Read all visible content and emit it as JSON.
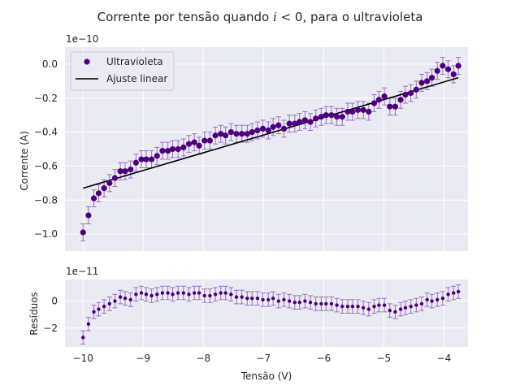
{
  "figure": {
    "title_prefix": "Corrente por tensão quando ",
    "title_math": "i",
    "title_suffix": " < 0, para o ultravioleta",
    "colors": {
      "background": "#eaeaf2",
      "grid": "#ffffff",
      "points": "#4b0082",
      "errorbars": "#9a6fc2",
      "fit": "#000000",
      "text": "#262626"
    }
  },
  "chart_data": [
    {
      "type": "scatter",
      "panel": "main",
      "title": "Corrente por tensão quando i < 0, para o ultravioleta",
      "xlabel": "",
      "ylabel": "Corrente (A)",
      "offset_label": "1e−10",
      "xlim": [
        -10.3,
        -3.6
      ],
      "ylim": [
        -1.1,
        0.1
      ],
      "xticks": [
        -10,
        -9,
        -8,
        -7,
        -6,
        -5,
        -4
      ],
      "xtick_labels": [
        "",
        "",
        "",
        "",
        "",
        "",
        ""
      ],
      "yticks": [
        -1.0,
        -0.8,
        -0.6,
        -0.4,
        -0.2,
        0.0
      ],
      "ytick_labels": [
        "−1.0",
        "−0.8",
        "−0.6",
        "−0.4",
        "−0.2",
        "0.0"
      ],
      "grid": true,
      "legend": {
        "placement": "top-left",
        "entries": [
          "Ultravioleta",
          "Ajuste linear"
        ]
      },
      "series": [
        {
          "name": "Ultravioleta",
          "kind": "errorbar-scatter",
          "yerr": 0.05,
          "x": [
            -10.0,
            -9.91,
            -9.82,
            -9.74,
            -9.65,
            -9.56,
            -9.47,
            -9.38,
            -9.3,
            -9.21,
            -9.12,
            -9.03,
            -8.95,
            -8.86,
            -8.77,
            -8.68,
            -8.59,
            -8.51,
            -8.42,
            -8.33,
            -8.24,
            -8.15,
            -8.07,
            -7.98,
            -7.89,
            -7.8,
            -7.71,
            -7.63,
            -7.54,
            -7.45,
            -7.36,
            -7.27,
            -7.19,
            -7.1,
            -7.01,
            -6.92,
            -6.84,
            -6.75,
            -6.66,
            -6.57,
            -6.48,
            -6.4,
            -6.31,
            -6.22,
            -6.13,
            -6.04,
            -5.96,
            -5.87,
            -5.78,
            -5.69,
            -5.6,
            -5.52,
            -5.43,
            -5.34,
            -5.25,
            -5.16,
            -5.08,
            -4.99,
            -4.9,
            -4.81,
            -4.72,
            -4.64,
            -4.55,
            -4.46,
            -4.37,
            -4.28,
            -4.2,
            -4.11,
            -4.02,
            -3.93,
            -3.84,
            -3.76
          ],
          "y": [
            -0.99,
            -0.89,
            -0.79,
            -0.76,
            -0.73,
            -0.7,
            -0.67,
            -0.63,
            -0.63,
            -0.62,
            -0.58,
            -0.56,
            -0.56,
            -0.56,
            -0.54,
            -0.51,
            -0.51,
            -0.5,
            -0.5,
            -0.49,
            -0.47,
            -0.46,
            -0.48,
            -0.45,
            -0.45,
            -0.42,
            -0.41,
            -0.42,
            -0.4,
            -0.41,
            -0.41,
            -0.41,
            -0.4,
            -0.39,
            -0.38,
            -0.39,
            -0.37,
            -0.36,
            -0.38,
            -0.35,
            -0.35,
            -0.34,
            -0.33,
            -0.34,
            -0.32,
            -0.31,
            -0.3,
            -0.3,
            -0.31,
            -0.31,
            -0.28,
            -0.28,
            -0.27,
            -0.27,
            -0.28,
            -0.23,
            -0.21,
            -0.19,
            -0.25,
            -0.25,
            -0.21,
            -0.18,
            -0.17,
            -0.15,
            -0.11,
            -0.1,
            -0.08,
            -0.04,
            -0.01,
            -0.03,
            -0.06,
            -0.01
          ]
        },
        {
          "name": "Ajuste linear",
          "kind": "line",
          "x": [
            -10.0,
            -3.76
          ],
          "y": [
            -0.73,
            -0.08
          ]
        }
      ]
    },
    {
      "type": "scatter",
      "panel": "residuals",
      "xlabel": "Tensão (V)",
      "ylabel": "Resíduos",
      "offset_label": "1e−11",
      "xlim": [
        -10.3,
        -3.6
      ],
      "ylim": [
        -3.4,
        1.6
      ],
      "xticks": [
        -10,
        -9,
        -8,
        -7,
        -6,
        -5,
        -4
      ],
      "xtick_labels": [
        "−10",
        "−9",
        "−8",
        "−7",
        "−6",
        "−5",
        "−4"
      ],
      "yticks": [
        -2,
        0
      ],
      "ytick_labels": [
        "−2",
        "0"
      ],
      "grid": true,
      "series": [
        {
          "name": "Resíduos",
          "kind": "errorbar-scatter",
          "yerr": 0.5,
          "x": [
            -10.0,
            -9.91,
            -9.82,
            -9.74,
            -9.65,
            -9.56,
            -9.47,
            -9.38,
            -9.3,
            -9.21,
            -9.12,
            -9.03,
            -8.95,
            -8.86,
            -8.77,
            -8.68,
            -8.59,
            -8.51,
            -8.42,
            -8.33,
            -8.24,
            -8.15,
            -8.07,
            -7.98,
            -7.89,
            -7.8,
            -7.71,
            -7.63,
            -7.54,
            -7.45,
            -7.36,
            -7.27,
            -7.19,
            -7.1,
            -7.01,
            -6.92,
            -6.84,
            -6.75,
            -6.66,
            -6.57,
            -6.48,
            -6.4,
            -6.31,
            -6.22,
            -6.13,
            -6.04,
            -5.96,
            -5.87,
            -5.78,
            -5.69,
            -5.6,
            -5.52,
            -5.43,
            -5.34,
            -5.25,
            -5.16,
            -5.08,
            -4.99,
            -4.9,
            -4.81,
            -4.72,
            -4.64,
            -4.55,
            -4.46,
            -4.37,
            -4.28,
            -4.2,
            -4.11,
            -4.02,
            -3.93,
            -3.84,
            -3.76
          ],
          "y": [
            -2.7,
            -1.7,
            -0.8,
            -0.6,
            -0.4,
            -0.2,
            0.0,
            0.3,
            0.2,
            0.1,
            0.5,
            0.6,
            0.5,
            0.4,
            0.5,
            0.6,
            0.6,
            0.5,
            0.6,
            0.6,
            0.5,
            0.6,
            0.6,
            0.4,
            0.4,
            0.5,
            0.6,
            0.6,
            0.5,
            0.3,
            0.3,
            0.2,
            0.2,
            0.2,
            0.1,
            0.1,
            0.2,
            0.0,
            0.1,
            0.0,
            -0.1,
            -0.1,
            0.0,
            -0.1,
            -0.2,
            -0.2,
            -0.2,
            -0.2,
            -0.3,
            -0.4,
            -0.4,
            -0.4,
            -0.4,
            -0.5,
            -0.6,
            -0.4,
            -0.3,
            -0.3,
            -0.7,
            -0.8,
            -0.6,
            -0.5,
            -0.4,
            -0.3,
            -0.2,
            0.1,
            0.0,
            0.1,
            0.2,
            0.5,
            0.6,
            0.7
          ]
        }
      ]
    }
  ]
}
